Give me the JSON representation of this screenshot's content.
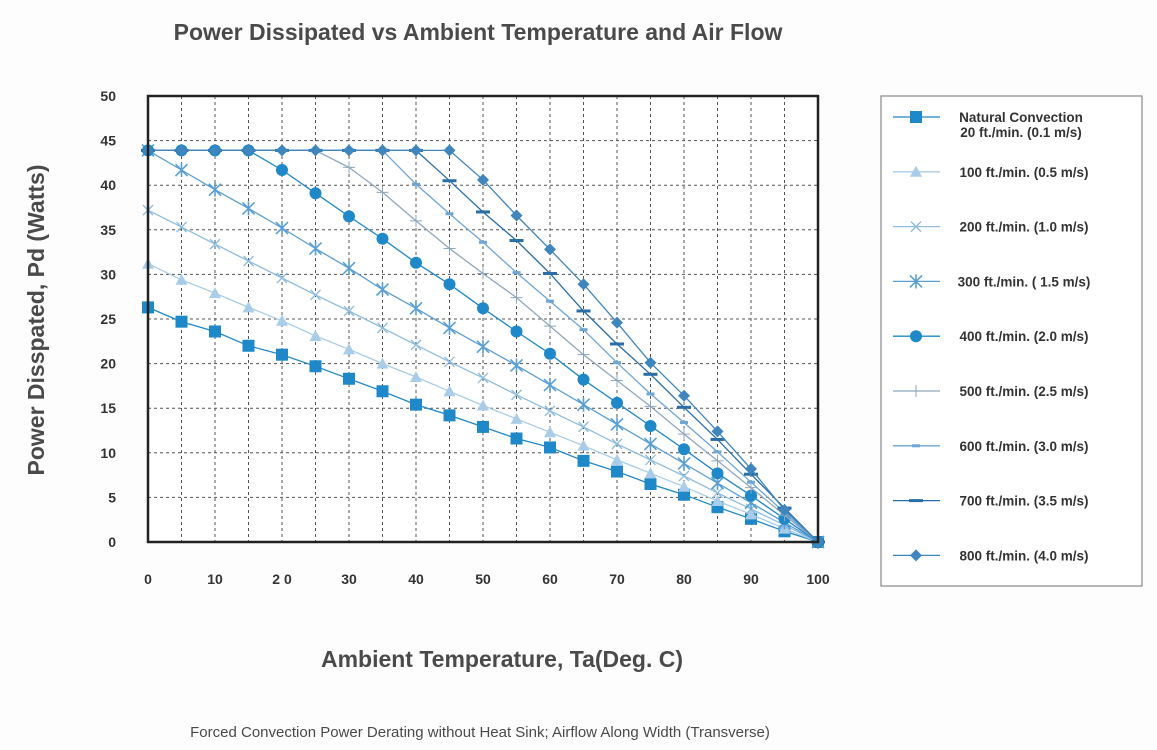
{
  "chart_data": {
    "type": "line",
    "title": "Power Dissipated vs Ambient Temperature and Air Flow",
    "xlabel": "Ambient Temperature, Ta(Deg. C)",
    "ylabel": "Power Disspated, Pd (Watts)",
    "caption": "Forced Convection Power Derating without Heat Sink; Airflow Along Width (Transverse)",
    "xlim": [
      0,
      100
    ],
    "ylim": [
      0,
      50
    ],
    "x_ticks": [
      0,
      10,
      20,
      30,
      40,
      50,
      60,
      70,
      80,
      90,
      100
    ],
    "x_tick_labels": [
      "0",
      "10",
      "2 0",
      "30",
      "40",
      "50",
      "60",
      "70",
      "80",
      "90",
      "100"
    ],
    "y_ticks": [
      0,
      5,
      10,
      15,
      20,
      25,
      30,
      35,
      40,
      45,
      50
    ],
    "y_tick_labels": [
      "0",
      "5",
      "10",
      "15",
      "20",
      "25",
      "30",
      "35",
      "40",
      "45",
      "50"
    ],
    "grid": true,
    "legend_position": "right",
    "series": [
      {
        "name": "Natural Convection 20 ft./min. (0.1 m/s)",
        "legend_lines": [
          "Natural Convection",
          "20 ft./min. (0.1 m/s)"
        ],
        "marker": "square",
        "color": "#1e88c8",
        "x": [
          0,
          5,
          10,
          15,
          20,
          25,
          30,
          35,
          40,
          45,
          50,
          55,
          60,
          65,
          70,
          75,
          80,
          85,
          90,
          95,
          100
        ],
        "y": [
          26.3,
          24.7,
          23.6,
          22.0,
          21.0,
          19.7,
          18.3,
          16.9,
          15.4,
          14.2,
          12.9,
          11.6,
          10.6,
          9.1,
          7.9,
          6.5,
          5.3,
          3.9,
          2.6,
          1.2,
          0
        ]
      },
      {
        "name": "100 ft./min. (0.5 m/s)",
        "legend_lines": [
          "100 ft./min. (0.5 m/s)"
        ],
        "marker": "triangle",
        "color": "#a9cde8",
        "x": [
          0,
          5,
          10,
          15,
          20,
          25,
          30,
          35,
          40,
          45,
          50,
          55,
          60,
          65,
          70,
          75,
          80,
          85,
          90,
          95,
          100
        ],
        "y": [
          31.2,
          29.4,
          27.9,
          26.3,
          24.8,
          23.1,
          21.6,
          20.0,
          18.5,
          16.9,
          15.3,
          13.8,
          12.3,
          10.8,
          9.2,
          7.7,
          6.2,
          4.6,
          3.1,
          1.5,
          0
        ]
      },
      {
        "name": "200 ft./min. (1.0 m/s)",
        "legend_lines": [
          "200 ft./min. (1.0 m/s)"
        ],
        "marker": "x",
        "color": "#8fbde0",
        "x": [
          0,
          5,
          10,
          15,
          20,
          25,
          30,
          35,
          40,
          45,
          50,
          55,
          60,
          65,
          70,
          75,
          80,
          85,
          90,
          95,
          100
        ],
        "y": [
          37.2,
          35.3,
          33.4,
          31.5,
          29.6,
          27.7,
          25.9,
          24.0,
          22.1,
          20.2,
          18.4,
          16.5,
          14.7,
          12.9,
          11.0,
          9.2,
          7.4,
          5.5,
          3.7,
          1.9,
          0
        ]
      },
      {
        "name": "300 ft./min. ( 1.5 m/s)",
        "legend_lines": [
          "300 ft./min. ( 1.5 m/s)"
        ],
        "marker": "asterisk",
        "color": "#5a9fd4",
        "x": [
          0,
          5,
          10,
          15,
          20,
          25,
          30,
          35,
          40,
          45,
          50,
          55,
          60,
          65,
          70,
          75,
          80,
          85,
          90,
          95,
          100
        ],
        "y": [
          43.9,
          41.7,
          39.5,
          37.4,
          35.2,
          32.9,
          30.7,
          28.3,
          26.2,
          24.0,
          21.9,
          19.8,
          17.6,
          15.4,
          13.2,
          11.0,
          8.8,
          6.6,
          4.4,
          2.2,
          0
        ]
      },
      {
        "name": "400 ft./min. (2.0 m/s)",
        "legend_lines": [
          "400 ft./min. (2.0 m/s)"
        ],
        "marker": "circle",
        "color": "#1e88c8",
        "x": [
          0,
          5,
          10,
          15,
          20,
          25,
          30,
          35,
          40,
          45,
          50,
          55,
          60,
          65,
          70,
          75,
          80,
          85,
          90,
          95,
          100
        ],
        "y": [
          43.9,
          43.9,
          43.9,
          43.9,
          41.7,
          39.1,
          36.5,
          34.0,
          31.3,
          28.9,
          26.2,
          23.6,
          21.1,
          18.2,
          15.6,
          13.0,
          10.4,
          7.7,
          5.2,
          2.6,
          0
        ]
      },
      {
        "name": "500 ft./min. (2.5 m/s)",
        "legend_lines": [
          "500 ft./min. (2.5 m/s)"
        ],
        "marker": "plus",
        "color": "#8fa7bf",
        "x": [
          0,
          5,
          10,
          15,
          20,
          25,
          30,
          35,
          40,
          45,
          50,
          55,
          60,
          65,
          70,
          75,
          80,
          85,
          90,
          95,
          100
        ],
        "y": [
          43.9,
          43.9,
          43.9,
          43.9,
          43.9,
          43.9,
          42.0,
          39.2,
          36.0,
          32.9,
          30.1,
          27.4,
          24.2,
          21.0,
          18.1,
          15.2,
          12.1,
          9.1,
          6.1,
          3.0,
          0
        ]
      },
      {
        "name": "600 ft./min. (3.0 m/s)",
        "legend_lines": [
          "600 ft./min. (3.0 m/s)"
        ],
        "marker": "dash-small",
        "color": "#6ea6d6",
        "x": [
          0,
          5,
          10,
          15,
          20,
          25,
          30,
          35,
          40,
          45,
          50,
          55,
          60,
          65,
          70,
          75,
          80,
          85,
          90,
          95,
          100
        ],
        "y": [
          43.9,
          43.9,
          43.9,
          43.9,
          43.9,
          43.9,
          43.9,
          43.9,
          40.1,
          36.8,
          33.6,
          30.2,
          27.0,
          23.8,
          20.1,
          16.6,
          13.4,
          10.1,
          6.7,
          3.3,
          0
        ]
      },
      {
        "name": "700 ft./min. (3.5 m/s)",
        "legend_lines": [
          "700 ft./min. (3.5 m/s)"
        ],
        "marker": "dash",
        "color": "#2a6ea8",
        "x": [
          0,
          5,
          10,
          15,
          20,
          25,
          30,
          35,
          40,
          45,
          50,
          55,
          60,
          65,
          70,
          75,
          80,
          85,
          90,
          95,
          100
        ],
        "y": [
          43.9,
          43.9,
          43.9,
          43.9,
          43.9,
          43.9,
          43.9,
          43.9,
          43.9,
          40.5,
          37.0,
          33.8,
          30.1,
          25.9,
          22.2,
          18.8,
          15.1,
          11.5,
          7.6,
          3.8,
          0
        ]
      },
      {
        "name": "800 ft./min. (4.0 m/s)",
        "legend_lines": [
          "800 ft./min. (4.0 m/s)"
        ],
        "marker": "diamond",
        "color": "#3f86bd",
        "x": [
          0,
          5,
          10,
          15,
          20,
          25,
          30,
          35,
          40,
          45,
          50,
          55,
          60,
          65,
          70,
          75,
          80,
          85,
          90,
          95,
          100
        ],
        "y": [
          43.9,
          43.9,
          43.9,
          43.9,
          43.9,
          43.9,
          43.9,
          43.9,
          43.9,
          43.9,
          40.6,
          36.6,
          32.8,
          28.9,
          24.6,
          20.1,
          16.4,
          12.4,
          8.2,
          3.6,
          0
        ]
      }
    ]
  }
}
